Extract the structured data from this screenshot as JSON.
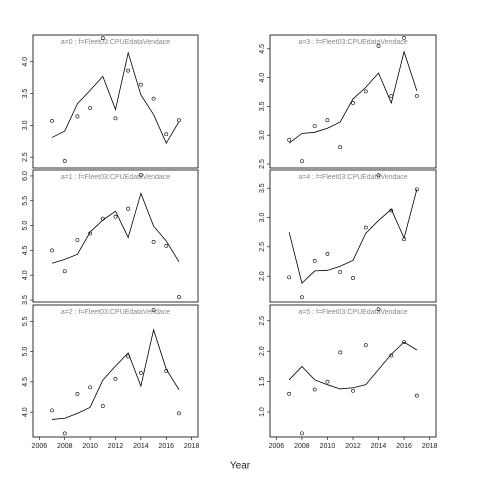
{
  "xlabel": "Year",
  "chart_data": [
    {
      "type": "line",
      "title": "a=0 : f=Fleet03:CPUEdataVendace",
      "x": [
        2007,
        2008,
        2009,
        2010,
        2011,
        2012,
        2013,
        2014,
        2015,
        2016,
        2017
      ],
      "series": [
        {
          "style": "line",
          "color": "#000000",
          "values": [
            2.81,
            2.91,
            3.34,
            3.55,
            3.77,
            3.25,
            4.14,
            3.48,
            3.17,
            2.72,
            3.06
          ]
        },
        {
          "style": "points",
          "color": "#000000",
          "values": [
            3.07,
            2.44,
            3.14,
            3.27,
            4.37,
            3.11,
            3.86,
            3.64,
            3.42,
            2.86,
            3.08
          ]
        }
      ],
      "xlim": [
        2005.5,
        2018.5
      ],
      "ylim": [
        2.33,
        4.42
      ],
      "yticks": [
        2.5,
        {
          "value": 3,
          "label": "3.0"
        },
        3.5,
        {
          "value": 4,
          "label": "4.0"
        }
      ]
    },
    {
      "type": "line",
      "title": "a=1 : f=Fleet03:CPUEdataVendace",
      "x": [
        2007,
        2008,
        2009,
        2010,
        2011,
        2012,
        2013,
        2014,
        2015,
        2016,
        2017
      ],
      "series": [
        {
          "style": "line",
          "color": "#000000",
          "values": [
            4.24,
            4.32,
            4.42,
            4.87,
            5.11,
            5.29,
            4.76,
            5.65,
            4.99,
            4.69,
            4.27
          ]
        },
        {
          "style": "points",
          "color": "#000000",
          "values": [
            4.5,
            4.08,
            4.71,
            4.84,
            5.14,
            5.18,
            5.34,
            6.02,
            4.67,
            4.59,
            3.56
          ]
        }
      ],
      "xlim": [
        2005.5,
        2018.5
      ],
      "ylim": [
        3.46,
        6.12
      ],
      "yticks": [
        3.5,
        {
          "value": 4,
          "label": "4.0"
        },
        4.5,
        {
          "value": 5,
          "label": "5.0"
        },
        5.5,
        {
          "value": 6,
          "label": "6.0"
        }
      ]
    },
    {
      "type": "line",
      "title": "a=2 : f=Fleet03:CPUEdataVendace",
      "x": [
        2007,
        2008,
        2009,
        2010,
        2011,
        2012,
        2013,
        2014,
        2015,
        2016,
        2017
      ],
      "series": [
        {
          "style": "line",
          "color": "#000000",
          "values": [
            3.88,
            3.9,
            3.98,
            4.08,
            4.53,
            4.76,
            4.98,
            4.43,
            5.36,
            4.71,
            4.37
          ]
        },
        {
          "style": "points",
          "color": "#000000",
          "values": [
            4.03,
            3.65,
            4.3,
            4.41,
            4.1,
            4.55,
            4.92,
            4.65,
            5.69,
            4.68,
            3.98
          ]
        }
      ],
      "xlim": [
        2005.5,
        2018.5
      ],
      "ylim": [
        3.59,
        5.77
      ],
      "xticks": [
        2006,
        2008,
        2010,
        2012,
        2014,
        2016,
        2018
      ],
      "yticks": [
        {
          "value": 4,
          "label": "4.0"
        },
        4.5,
        {
          "value": 5,
          "label": "5.0"
        },
        5.5
      ]
    },
    {
      "type": "line",
      "title": "a=3 : f=Fleet03:CPUEdataVendace",
      "x": [
        2007,
        2008,
        2009,
        2010,
        2011,
        2012,
        2013,
        2014,
        2015,
        2016,
        2017
      ],
      "series": [
        {
          "style": "line",
          "color": "#000000",
          "values": [
            2.86,
            3.03,
            3.05,
            3.12,
            3.23,
            3.63,
            3.83,
            4.08,
            3.56,
            4.45,
            3.77
          ]
        },
        {
          "style": "points",
          "color": "#000000",
          "values": [
            2.92,
            2.55,
            3.16,
            3.26,
            2.79,
            3.56,
            3.76,
            4.55,
            3.68,
            4.69,
            3.68
          ]
        }
      ],
      "xlim": [
        2005.5,
        2018.5
      ],
      "ylim": [
        2.43,
        4.74
      ],
      "yticks": [
        2.5,
        {
          "value": 3,
          "label": "3.0"
        },
        3.5,
        {
          "value": 4,
          "label": "4.0"
        },
        4.5
      ]
    },
    {
      "type": "line",
      "title": "a=4 : f=Fleet03:CPUEdataVendace",
      "x": [
        2007,
        2008,
        2009,
        2010,
        2011,
        2012,
        2013,
        2014,
        2015,
        2016,
        2017
      ],
      "series": [
        {
          "style": "line",
          "color": "#000000",
          "values": [
            2.75,
            1.88,
            2.09,
            2.1,
            2.17,
            2.27,
            2.73,
            2.95,
            3.14,
            2.65,
            3.48
          ]
        },
        {
          "style": "points",
          "color": "#000000",
          "values": [
            1.98,
            1.64,
            2.26,
            2.38,
            2.07,
            1.97,
            2.83,
            3.72,
            3.12,
            2.63,
            3.48
          ]
        }
      ],
      "xlim": [
        2005.5,
        2018.5
      ],
      "ylim": [
        1.56,
        3.81
      ],
      "yticks": [
        {
          "value": 2,
          "label": "2.0"
        },
        2.5,
        {
          "value": 3,
          "label": "3.0"
        },
        3.5
      ]
    },
    {
      "type": "line",
      "title": "a=5 : f=Fleet03:CPUEdataVendace",
      "x": [
        2007,
        2008,
        2009,
        2010,
        2011,
        2012,
        2013,
        2014,
        2015,
        2016,
        2017
      ],
      "series": [
        {
          "style": "line",
          "color": "#000000",
          "values": [
            1.53,
            1.75,
            1.53,
            1.45,
            1.38,
            1.4,
            1.45,
            1.7,
            1.95,
            2.15,
            2.02
          ]
        },
        {
          "style": "points",
          "color": "#000000",
          "values": [
            1.3,
            0.65,
            1.37,
            1.5,
            1.98,
            1.35,
            2.1,
            2.69,
            1.93,
            2.15,
            1.27
          ]
        }
      ],
      "xlim": [
        2005.5,
        2018.5
      ],
      "ylim": [
        0.59,
        2.76
      ],
      "xticks": [
        2006,
        2008,
        2010,
        2012,
        2014,
        2016,
        2018
      ],
      "yticks": [
        {
          "value": 1,
          "label": "1.0"
        },
        1.5,
        {
          "value": 2,
          "label": "2.0"
        },
        2.5
      ]
    }
  ]
}
